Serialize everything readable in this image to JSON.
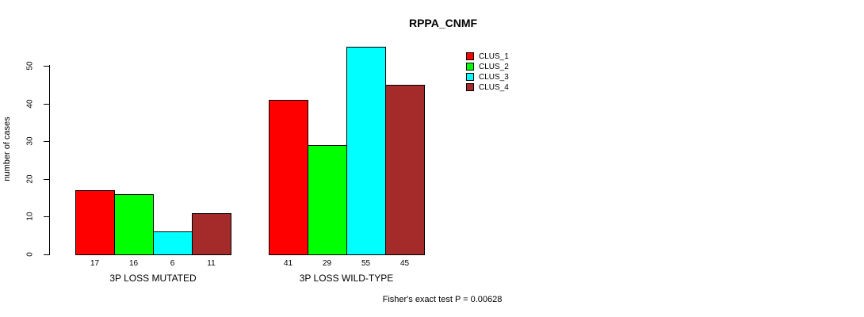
{
  "chart_data": {
    "type": "bar",
    "title": "RPPA_CNMF",
    "xlabel": "",
    "ylabel": "number of cases",
    "categories": [
      "3P LOSS MUTATED",
      "3P LOSS WILD-TYPE"
    ],
    "series": [
      {
        "name": "CLUS_1",
        "color": "#FF0000",
        "values": [
          17,
          41
        ]
      },
      {
        "name": "CLUS_2",
        "color": "#00FF00",
        "values": [
          16,
          29
        ]
      },
      {
        "name": "CLUS_3",
        "color": "#00FFFF",
        "values": [
          6,
          55
        ]
      },
      {
        "name": "CLUS_4",
        "color": "#A52A2A",
        "values": [
          11,
          45
        ]
      }
    ],
    "ylim": [
      0,
      50
    ],
    "yticks": [
      0,
      10,
      20,
      30,
      40,
      50
    ],
    "bar_value_labels_shown": true,
    "legend_position": "right",
    "grid": false,
    "background": "#FFFFFF",
    "axis_color": "#000000",
    "bar_border_color": "#000000"
  },
  "footer": {
    "note": "Fisher's exact test P = 0.00628"
  }
}
